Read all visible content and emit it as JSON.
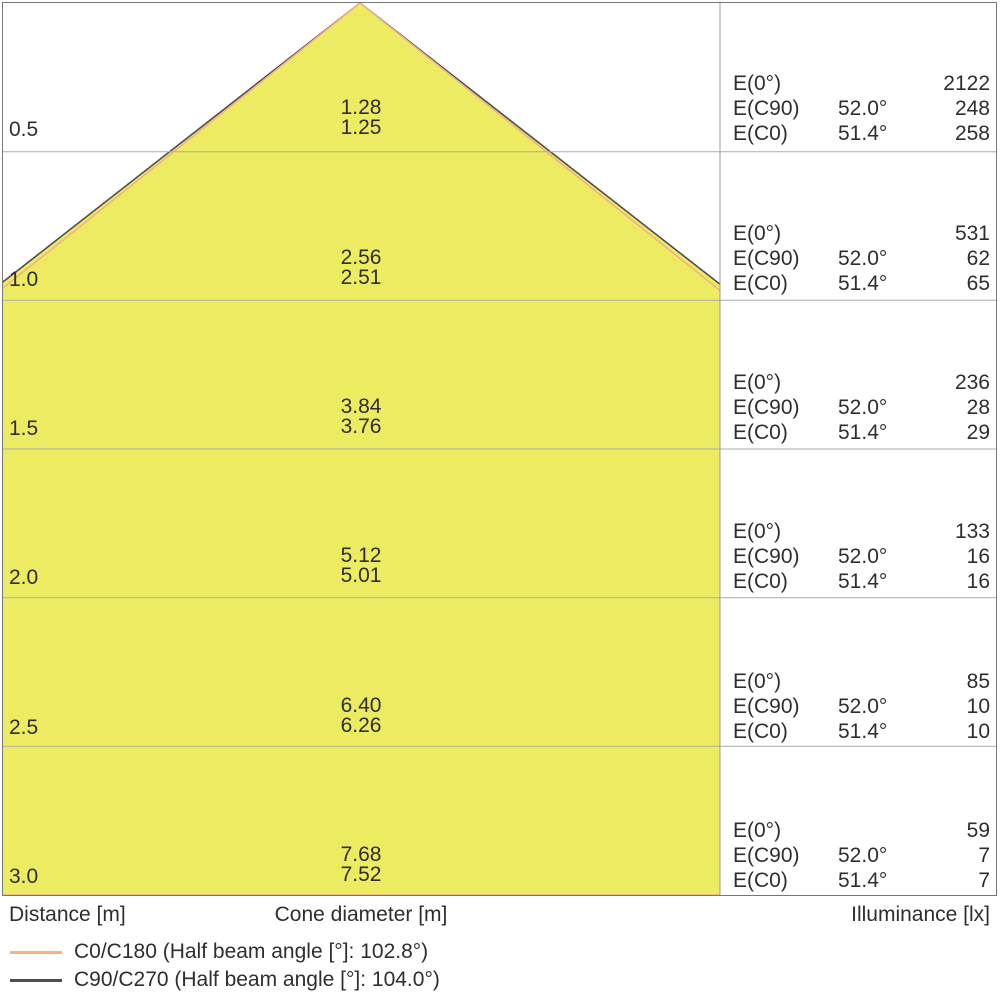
{
  "colors": {
    "cone_fill": "#EDEB61",
    "c0_line": "#F1B289",
    "c90_line": "#4D4D55",
    "grid_line": "#ABABAB",
    "frame_border": "#777777",
    "text": "#2E2E2E"
  },
  "axis": {
    "distance_label": "Distance [m]",
    "cone_diameter_label": "Cone diameter [m]",
    "illuminance_label": "Illuminance [lx]"
  },
  "panel": {
    "e0_label": "E(0°)",
    "ec90_label": "E(C90)",
    "ec0_label": "E(C0)",
    "ec90_angle": "52.0°",
    "ec0_angle": "51.4°"
  },
  "legend": {
    "items": [
      {
        "label": "C0/C180 (Half beam angle [°]: 102.8°)",
        "color": "#F1B289"
      },
      {
        "label": "C90/C270 (Half beam angle [°]: 104.0°)",
        "color": "#4D4D55"
      }
    ]
  },
  "rows": [
    {
      "distance": "0.5",
      "cone_c90": "1.28",
      "cone_c0": "1.25",
      "e0": "2122",
      "ec90": "248",
      "ec0": "258"
    },
    {
      "distance": "1.0",
      "cone_c90": "2.56",
      "cone_c0": "2.51",
      "e0": "531",
      "ec90": "62",
      "ec0": "65"
    },
    {
      "distance": "1.5",
      "cone_c90": "3.84",
      "cone_c0": "3.76",
      "e0": "236",
      "ec90": "28",
      "ec0": "29"
    },
    {
      "distance": "2.0",
      "cone_c90": "5.12",
      "cone_c0": "5.01",
      "e0": "133",
      "ec90": "16",
      "ec0": "16"
    },
    {
      "distance": "2.5",
      "cone_c90": "6.40",
      "cone_c0": "6.26",
      "e0": "85",
      "ec90": "10",
      "ec0": "10"
    },
    {
      "distance": "3.0",
      "cone_c90": "7.68",
      "cone_c0": "7.52",
      "e0": "59",
      "ec90": "7",
      "ec0": "7"
    }
  ],
  "chart_data": {
    "type": "area",
    "title": "Light cone diagram (distance vs. cone diameter with illuminance values)",
    "xlabel": "Cone diameter [m]",
    "ylabel": "Distance [m]",
    "distances_m": [
      0.5,
      1.0,
      1.5,
      2.0,
      2.5,
      3.0
    ],
    "cone_fill": "#EDEB61",
    "grid": true,
    "legend_position": "bottom-left",
    "series": [
      {
        "id": "c0",
        "name": "C0/C180",
        "half_beam_angle_deg": 102.8,
        "color": "#F1B289",
        "cone_diameter_m": [
          1.25,
          2.51,
          3.76,
          5.01,
          6.26,
          7.52
        ]
      },
      {
        "id": "c90",
        "name": "C90/C270",
        "half_beam_angle_deg": 104.0,
        "color": "#4D4D55",
        "cone_diameter_m": [
          1.28,
          2.56,
          3.84,
          5.12,
          6.4,
          7.68
        ]
      }
    ],
    "illuminance_lx": {
      "E0": [
        2122,
        531,
        236,
        133,
        85,
        59
      ],
      "EC90": [
        248,
        62,
        28,
        16,
        10,
        7
      ],
      "EC0": [
        258,
        65,
        29,
        16,
        10,
        7
      ]
    },
    "angles": {
      "EC90": 52.0,
      "EC0": 51.4
    }
  }
}
